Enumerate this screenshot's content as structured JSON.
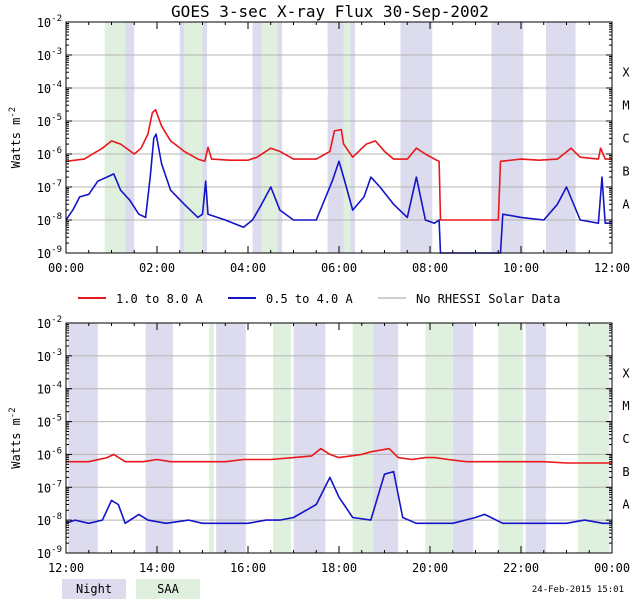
{
  "chart_data": {
    "type": "line",
    "title": "GOES 3-sec X-ray Flux   30-Sep-2002",
    "ylabel": "Watts m^-2",
    "yscale": "log",
    "ylim": [
      1e-09,
      0.01
    ],
    "y_ticks": [
      {
        "exp": "-2",
        "value": 0.01
      },
      {
        "exp": "-3",
        "value": 0.001
      },
      {
        "exp": "-4",
        "value": 0.0001
      },
      {
        "exp": "-5",
        "value": 1e-05
      },
      {
        "exp": "-6",
        "value": 1e-06
      },
      {
        "exp": "-7",
        "value": 1e-07
      },
      {
        "exp": "-8",
        "value": 1e-08
      },
      {
        "exp": "-9",
        "value": 1e-09
      }
    ],
    "flare_classes": [
      {
        "label": "X",
        "value": 0.0001
      },
      {
        "label": "M",
        "value": 1e-05
      },
      {
        "label": "C",
        "value": 1e-06
      },
      {
        "label": "B",
        "value": 1e-07
      },
      {
        "label": "A",
        "value": 1e-08
      }
    ],
    "colors": {
      "long": "#e8181c",
      "short": "#1414c8",
      "nodata": "#a0a0a0",
      "night": "#dcdcee",
      "saa": "#dff0df"
    },
    "panels": [
      {
        "id": "top",
        "xlim": [
          0,
          12
        ],
        "x_ticks": [
          {
            "label": "00:00",
            "value": 0
          },
          {
            "label": "02:00",
            "value": 2
          },
          {
            "label": "04:00",
            "value": 4
          },
          {
            "label": "06:00",
            "value": 6
          },
          {
            "label": "08:00",
            "value": 8
          },
          {
            "label": "10:00",
            "value": 10
          },
          {
            "label": "12:00",
            "value": 12
          }
        ],
        "night": [
          [
            1.08,
            1.5
          ],
          [
            2.5,
            3.1
          ],
          [
            4.1,
            4.75
          ],
          [
            5.75,
            6.35
          ],
          [
            7.35,
            8.05
          ],
          [
            9.35,
            10.05
          ],
          [
            10.55,
            11.2
          ]
        ],
        "saa": [
          [
            0.85,
            1.3
          ],
          [
            2.6,
            3.0
          ],
          [
            4.3,
            4.65
          ],
          [
            6.1,
            6.25
          ]
        ],
        "long": [
          [
            0.0,
            6e-07
          ],
          [
            0.4,
            7e-07
          ],
          [
            0.8,
            1.5e-06
          ],
          [
            1.0,
            2.5e-06
          ],
          [
            1.2,
            2e-06
          ],
          [
            1.5,
            1e-06
          ],
          [
            1.65,
            1.5e-06
          ],
          [
            1.8,
            4e-06
          ],
          [
            1.9,
            1.8e-05
          ],
          [
            1.97,
            2.2e-05
          ],
          [
            2.1,
            7e-06
          ],
          [
            2.3,
            2.5e-06
          ],
          [
            2.6,
            1.2e-06
          ],
          [
            2.9,
            7e-07
          ],
          [
            3.05,
            6e-07
          ],
          [
            3.12,
            1.6e-06
          ],
          [
            3.2,
            7e-07
          ],
          [
            3.6,
            6.5e-07
          ],
          [
            4.0,
            6.5e-07
          ],
          [
            4.2,
            8e-07
          ],
          [
            4.5,
            1.5e-06
          ],
          [
            4.7,
            1.2e-06
          ],
          [
            5.0,
            7e-07
          ],
          [
            5.5,
            7e-07
          ],
          [
            5.8,
            1.2e-06
          ],
          [
            5.9,
            5e-06
          ],
          [
            6.05,
            5.5e-06
          ],
          [
            6.1,
            2e-06
          ],
          [
            6.3,
            8e-07
          ],
          [
            6.6,
            2e-06
          ],
          [
            6.8,
            2.5e-06
          ],
          [
            7.0,
            1.2e-06
          ],
          [
            7.2,
            7e-07
          ],
          [
            7.5,
            7e-07
          ],
          [
            7.7,
            1.5e-06
          ],
          [
            7.9,
            1e-06
          ],
          [
            8.1,
            7e-07
          ],
          [
            8.2,
            6e-07
          ],
          [
            8.23,
            1e-08
          ],
          [
            9.5,
            1e-08
          ],
          [
            9.55,
            6e-07
          ],
          [
            10.0,
            7e-07
          ],
          [
            10.4,
            6.5e-07
          ],
          [
            10.8,
            7e-07
          ],
          [
            11.1,
            1.5e-06
          ],
          [
            11.3,
            8e-07
          ],
          [
            11.7,
            7e-07
          ],
          [
            11.75,
            1.5e-06
          ],
          [
            11.85,
            7e-07
          ],
          [
            12.0,
            7e-07
          ]
        ],
        "short": [
          [
            0.0,
            1e-08
          ],
          [
            0.15,
            2e-08
          ],
          [
            0.3,
            5e-08
          ],
          [
            0.5,
            6e-08
          ],
          [
            0.7,
            1.5e-07
          ],
          [
            0.9,
            2e-07
          ],
          [
            1.05,
            2.5e-07
          ],
          [
            1.2,
            8e-08
          ],
          [
            1.4,
            4e-08
          ],
          [
            1.6,
            1.5e-08
          ],
          [
            1.75,
            1.2e-08
          ],
          [
            1.85,
            2e-07
          ],
          [
            1.93,
            3e-06
          ],
          [
            1.98,
            4e-06
          ],
          [
            2.1,
            5e-07
          ],
          [
            2.3,
            8e-08
          ],
          [
            2.6,
            3e-08
          ],
          [
            2.9,
            1.2e-08
          ],
          [
            3.0,
            1.5e-08
          ],
          [
            3.07,
            1.5e-07
          ],
          [
            3.12,
            1.5e-08
          ],
          [
            3.5,
            1e-08
          ],
          [
            3.9,
            6e-09
          ],
          [
            4.1,
            1e-08
          ],
          [
            4.3,
            3e-08
          ],
          [
            4.5,
            1e-07
          ],
          [
            4.7,
            2e-08
          ],
          [
            5.0,
            1e-08
          ],
          [
            5.5,
            1e-08
          ],
          [
            5.85,
            1.5e-07
          ],
          [
            6.0,
            6e-07
          ],
          [
            6.1,
            2e-07
          ],
          [
            6.3,
            2e-08
          ],
          [
            6.55,
            5e-08
          ],
          [
            6.7,
            2e-07
          ],
          [
            6.9,
            1e-07
          ],
          [
            7.2,
            3e-08
          ],
          [
            7.5,
            1.2e-08
          ],
          [
            7.7,
            2e-07
          ],
          [
            7.9,
            1e-08
          ],
          [
            8.1,
            8e-09
          ],
          [
            8.2,
            1e-08
          ],
          [
            8.23,
            1e-09
          ],
          [
            9.55,
            1e-09
          ],
          [
            9.6,
            1.5e-08
          ],
          [
            10.0,
            1.2e-08
          ],
          [
            10.5,
            1e-08
          ],
          [
            10.8,
            3e-08
          ],
          [
            11.0,
            1e-07
          ],
          [
            11.3,
            1e-08
          ],
          [
            11.7,
            8e-09
          ],
          [
            11.78,
            2e-07
          ],
          [
            11.85,
            8e-09
          ],
          [
            12.0,
            8e-09
          ]
        ]
      },
      {
        "id": "bottom",
        "xlim": [
          12,
          24
        ],
        "x_ticks": [
          {
            "label": "12:00",
            "value": 12
          },
          {
            "label": "14:00",
            "value": 14
          },
          {
            "label": "16:00",
            "value": 16
          },
          {
            "label": "18:00",
            "value": 18
          },
          {
            "label": "20:00",
            "value": 20
          },
          {
            "label": "22:00",
            "value": 22
          },
          {
            "label": "00:00",
            "value": 24
          }
        ],
        "night": [
          [
            12.05,
            12.7
          ],
          [
            13.75,
            14.35
          ],
          [
            15.3,
            15.95
          ],
          [
            17.0,
            17.7
          ],
          [
            18.7,
            19.3
          ],
          [
            20.5,
            20.95
          ],
          [
            22.1,
            22.55
          ]
        ],
        "saa": [
          [
            15.15,
            15.25
          ],
          [
            16.55,
            16.95
          ],
          [
            18.3,
            18.75
          ],
          [
            19.9,
            20.5
          ],
          [
            21.5,
            22.05
          ],
          [
            23.25,
            23.95
          ]
        ],
        "long": [
          [
            12.0,
            6e-07
          ],
          [
            12.5,
            6e-07
          ],
          [
            12.9,
            8e-07
          ],
          [
            13.05,
            1e-06
          ],
          [
            13.3,
            6e-07
          ],
          [
            13.7,
            6e-07
          ],
          [
            14.0,
            7e-07
          ],
          [
            14.3,
            6e-07
          ],
          [
            15.0,
            6e-07
          ],
          [
            15.5,
            6e-07
          ],
          [
            15.9,
            7e-07
          ],
          [
            16.5,
            7e-07
          ],
          [
            17.0,
            8e-07
          ],
          [
            17.4,
            9e-07
          ],
          [
            17.6,
            1.5e-06
          ],
          [
            17.8,
            1e-06
          ],
          [
            18.0,
            8e-07
          ],
          [
            18.5,
            1e-06
          ],
          [
            18.7,
            1.2e-06
          ],
          [
            19.1,
            1.5e-06
          ],
          [
            19.3,
            8e-07
          ],
          [
            19.6,
            7e-07
          ],
          [
            19.9,
            8e-07
          ],
          [
            20.1,
            8e-07
          ],
          [
            20.4,
            7e-07
          ],
          [
            20.8,
            6e-07
          ],
          [
            21.5,
            6e-07
          ],
          [
            22.0,
            6e-07
          ],
          [
            22.5,
            6e-07
          ],
          [
            23.0,
            5.5e-07
          ],
          [
            23.5,
            5.5e-07
          ],
          [
            24.0,
            5.5e-07
          ]
        ],
        "short": [
          [
            12.0,
            8e-09
          ],
          [
            12.2,
            1e-08
          ],
          [
            12.5,
            8e-09
          ],
          [
            12.8,
            1e-08
          ],
          [
            13.0,
            4e-08
          ],
          [
            13.15,
            3e-08
          ],
          [
            13.3,
            8e-09
          ],
          [
            13.6,
            1.5e-08
          ],
          [
            13.8,
            1e-08
          ],
          [
            14.2,
            8e-09
          ],
          [
            14.7,
            1e-08
          ],
          [
            15.0,
            8e-09
          ],
          [
            15.5,
            8e-09
          ],
          [
            16.0,
            8e-09
          ],
          [
            16.4,
            1e-08
          ],
          [
            16.7,
            1e-08
          ],
          [
            17.0,
            1.2e-08
          ],
          [
            17.5,
            3e-08
          ],
          [
            17.8,
            2e-07
          ],
          [
            18.0,
            5e-08
          ],
          [
            18.3,
            1.2e-08
          ],
          [
            18.7,
            1e-08
          ],
          [
            19.0,
            2.5e-07
          ],
          [
            19.2,
            3e-07
          ],
          [
            19.4,
            1.2e-08
          ],
          [
            19.7,
            8e-09
          ],
          [
            20.0,
            8e-09
          ],
          [
            20.5,
            8e-09
          ],
          [
            21.0,
            1.2e-08
          ],
          [
            21.2,
            1.5e-08
          ],
          [
            21.6,
            8e-09
          ],
          [
            22.0,
            8e-09
          ],
          [
            22.5,
            8e-09
          ],
          [
            23.0,
            8e-09
          ],
          [
            23.4,
            1e-08
          ],
          [
            23.8,
            8e-09
          ],
          [
            24.0,
            8e-09
          ]
        ]
      }
    ],
    "legend": {
      "long_label": "1.0 to 8.0 A",
      "short_label": "0.5 to 4.0 A",
      "nodata_label": "No RHESSI Solar Data",
      "night_label": "Night",
      "saa_label": "SAA"
    },
    "footer": "24-Feb-2015 15:01"
  }
}
